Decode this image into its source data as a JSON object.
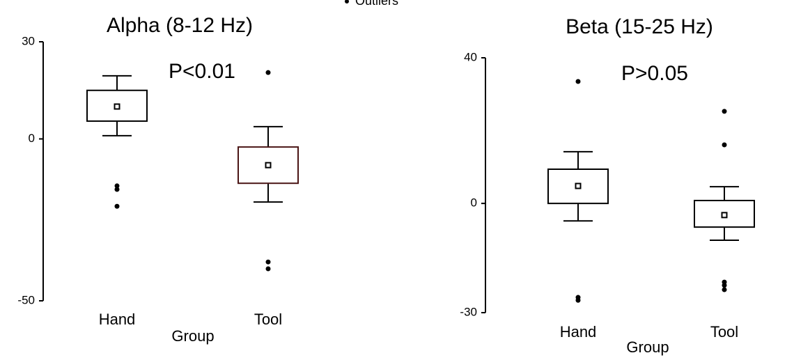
{
  "legend": "Outliers",
  "chart_data": [
    {
      "type": "box",
      "title": "Alpha (8-12 Hz)",
      "annotation": "P<0.01",
      "xlabel": "Group",
      "categories": [
        "Hand",
        "Tool"
      ],
      "colors": [
        "#000000",
        "#4a1414"
      ],
      "ylim": [
        -50,
        30
      ],
      "yticks": [
        -50,
        0,
        30
      ],
      "boxes": [
        {
          "whisker_high": 19.5,
          "q3": 15,
          "mean": 10,
          "q1": 5.5,
          "whisker_low": 1,
          "outliers": [
            -14.5,
            -15.6,
            -20.8
          ]
        },
        {
          "whisker_high": 3.8,
          "q3": -2.5,
          "mean": -8.1,
          "q1": -13.7,
          "whisker_low": -19.5,
          "outliers": [
            20.5,
            -38,
            -40.1
          ]
        }
      ]
    },
    {
      "type": "box",
      "title": "Beta (15-25 Hz)",
      "annotation": "P>0.05",
      "xlabel": "Group",
      "categories": [
        "Hand",
        "Tool"
      ],
      "colors": [
        "#000000",
        "#000000"
      ],
      "ylim": [
        -30,
        40
      ],
      "yticks": [
        -30,
        0,
        40
      ],
      "boxes": [
        {
          "whisker_high": 14.2,
          "q3": 9.4,
          "mean": 4.8,
          "q1": 0,
          "whisker_low": -4.8,
          "outliers": [
            33.5,
            -25.8,
            -26.6
          ]
        },
        {
          "whisker_high": 4.6,
          "q3": 0.8,
          "mean": -3.2,
          "q1": -6.5,
          "whisker_low": -10.1,
          "outliers": [
            25.3,
            16.1,
            -21.6,
            -22.5,
            -23.7
          ]
        }
      ]
    }
  ]
}
